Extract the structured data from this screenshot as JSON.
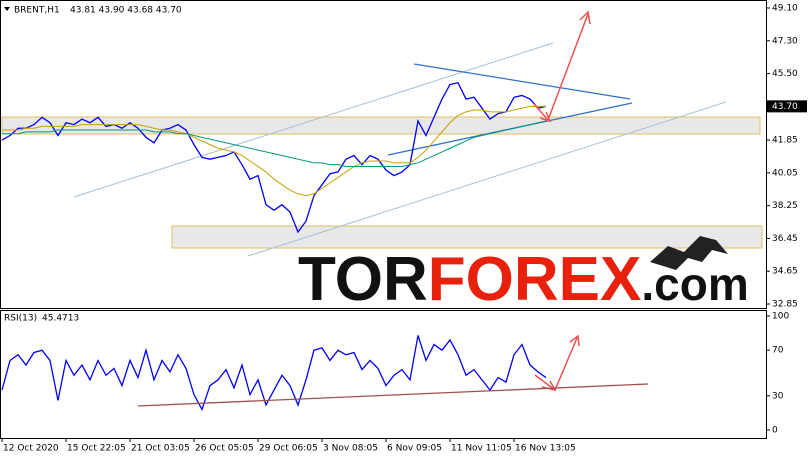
{
  "chart_data": [
    {
      "type": "line",
      "title": "BRENT,H1",
      "subtitle": "43.81 43.90 43.68 43.70",
      "categories": [
        "12 Oct 2020",
        null,
        null,
        null,
        null,
        null,
        null,
        null,
        "15 Oct 22:05",
        null,
        null,
        null,
        null,
        null,
        null,
        null,
        "21 Oct 03:05",
        null,
        null,
        null,
        null,
        null,
        null,
        null,
        "26 Oct 05:05",
        null,
        null,
        null,
        null,
        null,
        null,
        null,
        "29 Oct 06:05",
        null,
        null,
        null,
        null,
        null,
        null,
        null,
        "3 Nov 08:05",
        null,
        null,
        null,
        null,
        null,
        null,
        null,
        "6 Nov 09:05",
        null,
        null,
        null,
        null,
        null,
        null,
        null,
        "11 Nov 11:05",
        null,
        null,
        null,
        null,
        null,
        null,
        null,
        "16 Nov 13:05",
        null,
        null,
        null,
        null
      ],
      "series": [
        {
          "color": "#0000ff",
          "values": [
            41.85,
            42.1,
            42.5,
            42.5,
            42.7,
            43.1,
            42.8,
            42.1,
            42.8,
            42.7,
            43.0,
            42.8,
            43.1,
            42.6,
            42.7,
            42.5,
            42.8,
            42.5,
            42.0,
            41.7,
            42.4,
            42.5,
            42.7,
            42.4,
            41.6,
            40.9,
            40.8,
            40.9,
            41.0,
            41.2,
            40.5,
            39.7,
            39.9,
            38.3,
            38.0,
            38.3,
            37.9,
            36.8,
            37.4,
            38.8,
            39.4,
            40.0,
            40.1,
            40.8,
            41.0,
            40.5,
            41.0,
            40.8,
            40.2,
            39.9,
            40.1,
            40.5,
            42.9,
            42.1,
            43.1,
            44.1,
            44.9,
            45.0,
            44.1,
            44.2,
            43.6,
            43.0,
            43.3,
            43.4,
            44.2,
            44.3,
            44.1,
            43.6,
            43.7
          ]
        },
        {
          "color": "#c8a000",
          "values": [
            42.4,
            42.4,
            42.4,
            42.5,
            42.5,
            42.6,
            42.6,
            42.6,
            42.6,
            42.6,
            42.7,
            42.7,
            42.7,
            42.7,
            42.7,
            42.7,
            42.7,
            42.7,
            42.6,
            42.5,
            42.4,
            42.4,
            42.3,
            42.2,
            42.0,
            41.8,
            41.6,
            41.4,
            41.3,
            41.2,
            41.0,
            40.7,
            40.4,
            40.1,
            39.7,
            39.4,
            39.1,
            38.9,
            38.8,
            38.9,
            39.2,
            39.5,
            39.8,
            40.1,
            40.4,
            40.6,
            40.7,
            40.7,
            40.7,
            40.6,
            40.6,
            40.6,
            40.9,
            41.3,
            41.8,
            42.3,
            42.8,
            43.2,
            43.4,
            43.5,
            43.5,
            43.4,
            43.4,
            43.4,
            43.5,
            43.6,
            43.7,
            43.7,
            43.7
          ]
        },
        {
          "color": "#009a7a",
          "values": [
            42.2,
            42.2,
            42.2,
            42.3,
            42.3,
            42.3,
            42.3,
            42.4,
            42.4,
            42.4,
            42.4,
            42.4,
            42.4,
            42.4,
            42.4,
            42.4,
            42.4,
            42.4,
            42.4,
            42.3,
            42.3,
            42.3,
            42.2,
            42.2,
            42.1,
            42.0,
            41.9,
            41.8,
            41.7,
            41.6,
            41.5,
            41.4,
            41.3,
            41.2,
            41.1,
            41.0,
            40.9,
            40.8,
            40.7,
            40.6,
            40.6,
            40.5,
            40.5,
            40.4,
            40.4,
            40.4,
            40.4,
            40.4,
            40.4,
            40.4,
            40.4,
            40.5,
            40.6,
            40.8,
            41.0,
            41.2,
            41.4,
            41.6,
            41.8,
            42.0,
            42.1,
            42.2,
            42.3,
            42.4,
            42.5,
            42.6,
            42.7,
            42.8,
            42.9
          ]
        }
      ],
      "ylim": [
        32.63,
        49.43
      ],
      "yticks": [
        {
          "value": 49.1,
          "label": "49.10"
        },
        {
          "value": 47.3,
          "label": "47.30"
        },
        {
          "value": 45.5,
          "label": "45.50"
        },
        {
          "value": 43.7,
          "label": "43.70"
        },
        41.85,
        40.05,
        38.25,
        36.45,
        34.65,
        32.85
      ],
      "grid": false
    },
    {
      "type": "line",
      "title": "RSI(13)",
      "last_value": 45.4713,
      "series": [
        {
          "color": "#0000ff",
          "values": [
            35,
            61,
            66,
            57,
            68,
            70,
            61,
            26,
            61,
            48,
            57,
            44,
            61,
            48,
            54,
            39,
            61,
            46,
            70,
            44,
            61,
            51,
            66,
            54,
            31,
            18,
            39,
            44,
            53,
            37,
            57,
            31,
            44,
            22,
            35,
            48,
            39,
            22,
            44,
            70,
            72,
            61,
            70,
            66,
            68,
            53,
            61,
            54,
            39,
            48,
            53,
            44,
            83,
            61,
            75,
            70,
            79,
            66,
            48,
            53,
            44,
            35,
            46,
            42,
            66,
            75,
            57,
            51,
            46
          ]
        }
      ],
      "ylim": [
        0,
        100
      ],
      "yticks": [
        100,
        70,
        30,
        0
      ],
      "grid": false
    }
  ],
  "watermark": [
    "TOR",
    "FOREX",
    ".com"
  ]
}
